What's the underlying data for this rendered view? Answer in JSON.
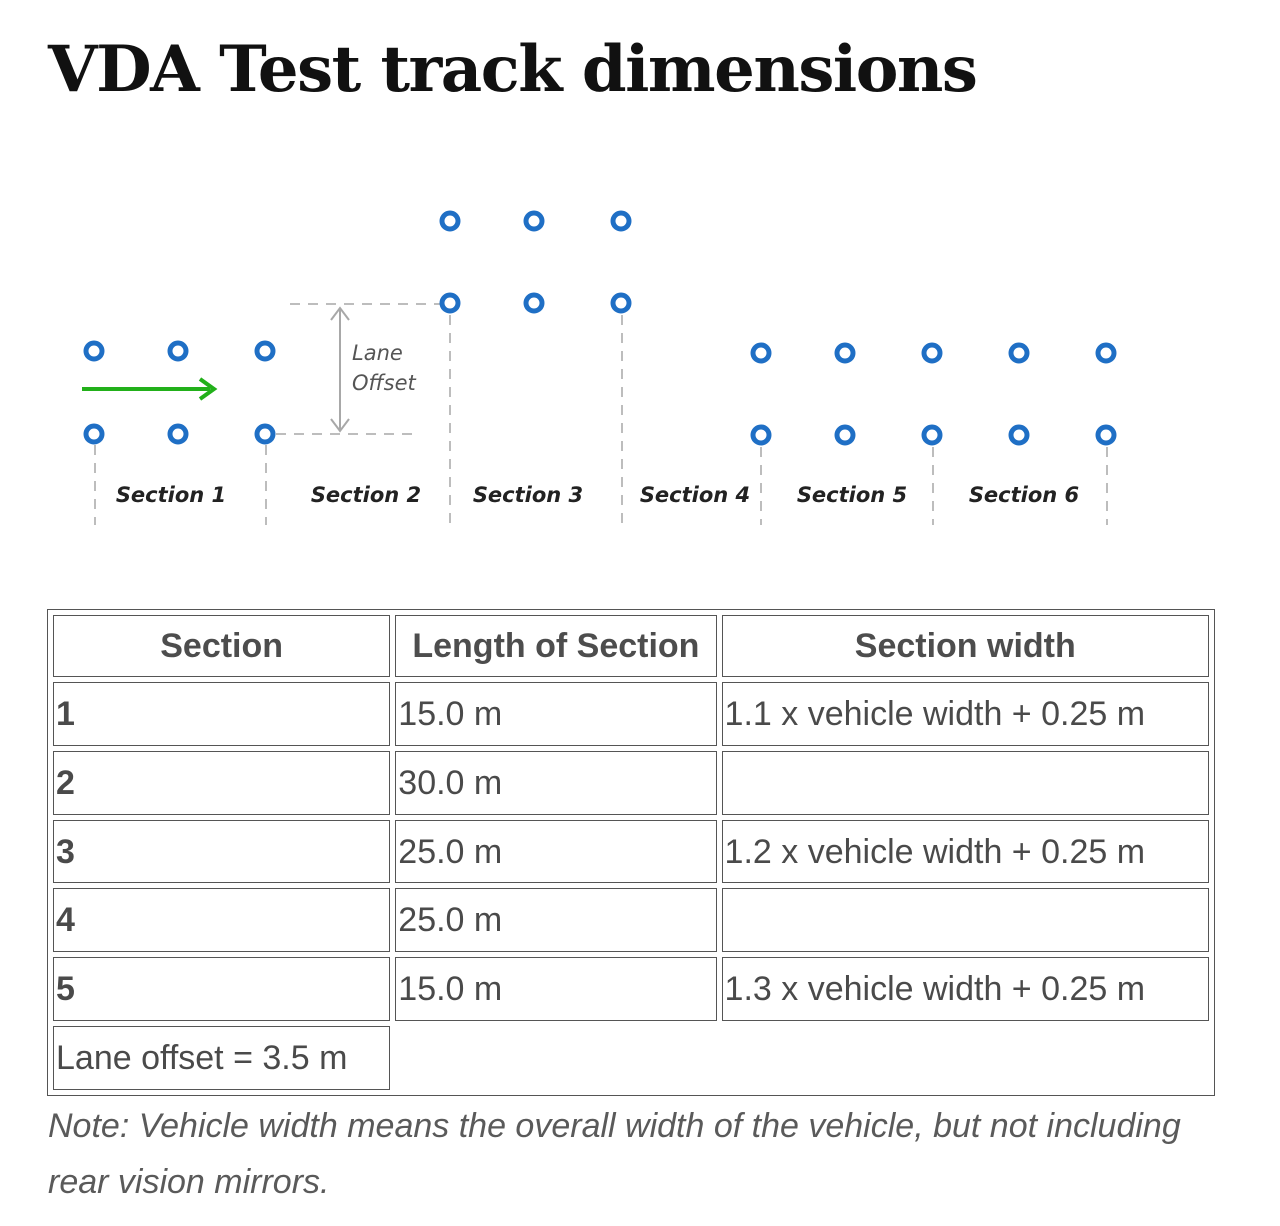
{
  "page": {
    "title": "VDA Test track dimensions"
  },
  "diagram": {
    "lane_offset_label_line1": "Lane",
    "lane_offset_label_line2": "Offset",
    "sections": [
      "Section 1",
      "Section 2",
      "Section 3",
      "Section 4",
      "Section 5",
      "Section 6"
    ],
    "cone_color": "#1f6fc5",
    "arrow_color": "#22b01a",
    "guide_color": "#bdbdbd"
  },
  "table": {
    "headers": [
      "Section",
      "Length of Section",
      "Section width"
    ],
    "rows": [
      {
        "section": "1",
        "length": "15.0 m",
        "width": "1.1 x vehicle width + 0.25 m"
      },
      {
        "section": "2",
        "length": "30.0 m",
        "width": ""
      },
      {
        "section": "3",
        "length": "25.0 m",
        "width": "1.2 x vehicle width + 0.25 m"
      },
      {
        "section": "4",
        "length": "25.0 m",
        "width": ""
      },
      {
        "section": "5",
        "length": "15.0 m",
        "width": "1.3 x vehicle width + 0.25 m"
      }
    ],
    "footer": "Lane offset = 3.5 m"
  },
  "note": "Note: Vehicle width means the overall width of the vehicle, but not including rear vision mirrors."
}
